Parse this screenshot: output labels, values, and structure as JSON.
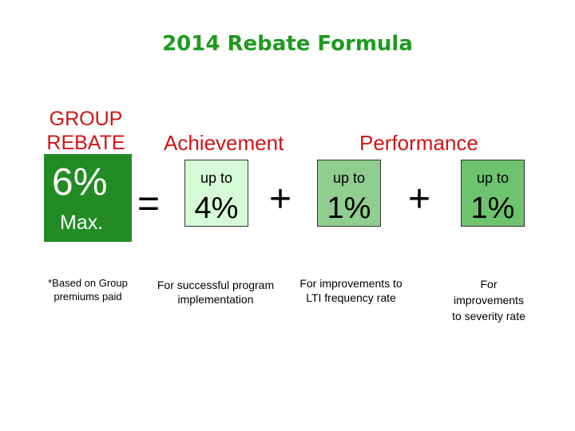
{
  "title": "2014 Rebate Formula",
  "group": {
    "label_line1": "GROUP",
    "label_line2": "REBATE",
    "value": "6%",
    "suffix": "Max.",
    "footnote_line1": "*Based on Group",
    "footnote_line2": "premiums paid"
  },
  "equals": "=",
  "plus": "+",
  "achievement": {
    "heading": "Achievement",
    "up_to": "up to",
    "value": "4%",
    "note_line1": "For successful program",
    "note_line2": "implementation"
  },
  "performance": {
    "heading": "Performance",
    "frequency": {
      "up_to": "up to",
      "value": "1%",
      "note_line1": "For improvements to",
      "note_line2": "LTI frequency rate"
    },
    "severity": {
      "up_to": "up to",
      "value": "1%",
      "note_line1": "For",
      "note_line2": "improvements",
      "note_line3": "to severity rate"
    }
  },
  "colors": {
    "title": "#1f9a1f",
    "headings": "#d21414",
    "group_box": "#238b23",
    "achievement_box": "#d6fbd6",
    "frequency_box": "#8fce8f",
    "severity_box": "#6ec36e"
  }
}
